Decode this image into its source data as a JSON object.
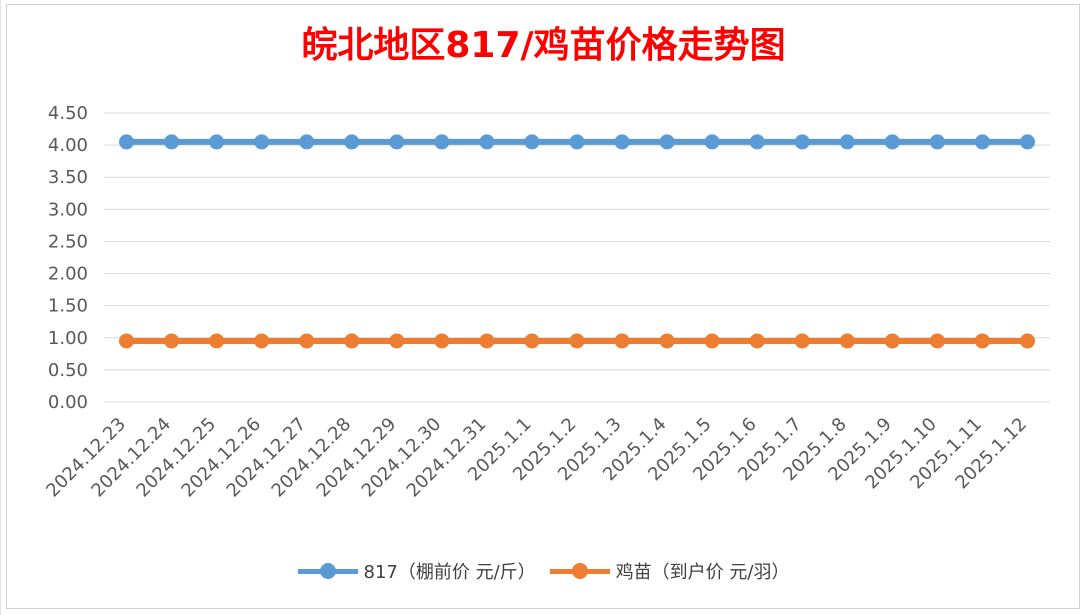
{
  "chart_data": {
    "type": "line",
    "title": "皖北地区817/鸡苗价格走势图",
    "categories": [
      "2024.12.23",
      "2024.12.24",
      "2024.12.25",
      "2024.12.26",
      "2024.12.27",
      "2024.12.28",
      "2024.12.29",
      "2024.12.30",
      "2024.12.31",
      "2025.1.1",
      "2025.1.2",
      "2025.1.3",
      "2025.1.4",
      "2025.1.5",
      "2025.1.6",
      "2025.1.7",
      "2025.1.8",
      "2025.1.9",
      "2025.1.10",
      "2025.1.11",
      "2025.1.12"
    ],
    "series": [
      {
        "name": "817（棚前价 元/斤）",
        "color": "#5b9bd5",
        "values": [
          4.05,
          4.05,
          4.05,
          4.05,
          4.05,
          4.05,
          4.05,
          4.05,
          4.05,
          4.05,
          4.05,
          4.05,
          4.05,
          4.05,
          4.05,
          4.05,
          4.05,
          4.05,
          4.05,
          4.05,
          4.05
        ]
      },
      {
        "name": "鸡苗（到户价 元/羽）",
        "color": "#ed7d31",
        "values": [
          0.95,
          0.95,
          0.95,
          0.95,
          0.95,
          0.95,
          0.95,
          0.95,
          0.95,
          0.95,
          0.95,
          0.95,
          0.95,
          0.95,
          0.95,
          0.95,
          0.95,
          0.95,
          0.95,
          0.95,
          0.95
        ]
      }
    ],
    "ylim": [
      0,
      4.5
    ],
    "yticks": [
      "0.00",
      "0.50",
      "1.00",
      "1.50",
      "2.00",
      "2.50",
      "3.00",
      "3.50",
      "4.00",
      "4.50"
    ],
    "grid": true,
    "legend_position": "bottom",
    "title_color": "#ff0000"
  }
}
